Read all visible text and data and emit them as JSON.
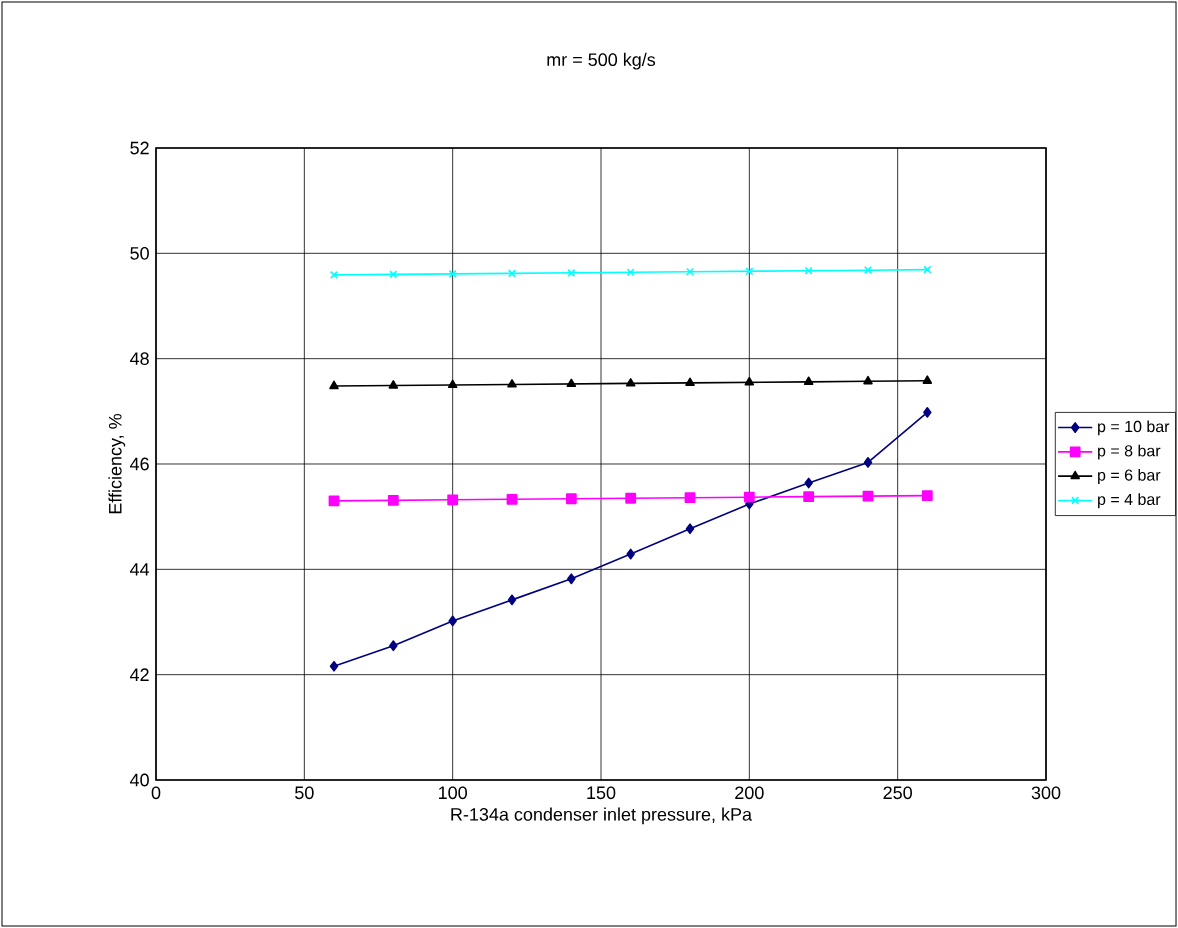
{
  "chart_data": {
    "type": "line",
    "title": "mr = 500 kg/s",
    "xlabel": "R-134a condenser inlet pressure, kPa",
    "ylabel": "Efficiency, %",
    "x": [
      60,
      80,
      100,
      120,
      140,
      160,
      180,
      200,
      220,
      240,
      260
    ],
    "series": [
      {
        "name": "p = 10 bar",
        "color": "#000080",
        "marker": "diamond",
        "values": [
          42.16,
          42.55,
          43.02,
          43.42,
          43.82,
          44.29,
          44.77,
          45.24,
          45.64,
          46.03,
          46.98
        ]
      },
      {
        "name": "p = 8 bar",
        "color": "#ff00ff",
        "marker": "square",
        "values": [
          45.3,
          45.31,
          45.32,
          45.33,
          45.34,
          45.35,
          45.36,
          45.37,
          45.38,
          45.39,
          45.4
        ]
      },
      {
        "name": "p = 6 bar",
        "color": "#000000",
        "marker": "triangle",
        "values": [
          47.48,
          47.49,
          47.5,
          47.51,
          47.52,
          47.53,
          47.54,
          47.55,
          47.56,
          47.57,
          47.58
        ]
      },
      {
        "name": "p = 4 bar",
        "color": "#00ffff",
        "marker": "cross",
        "values": [
          49.59,
          49.6,
          49.61,
          49.62,
          49.63,
          49.64,
          49.65,
          49.66,
          49.67,
          49.68,
          49.69
        ]
      }
    ],
    "xlim": [
      0,
      300
    ],
    "xticks": [
      0,
      50,
      100,
      150,
      200,
      250,
      300
    ],
    "ylim": [
      40,
      52
    ],
    "yticks": [
      40,
      42,
      44,
      46,
      48,
      50,
      52
    ],
    "grid": true,
    "legend": "right",
    "line_style": "solid"
  }
}
